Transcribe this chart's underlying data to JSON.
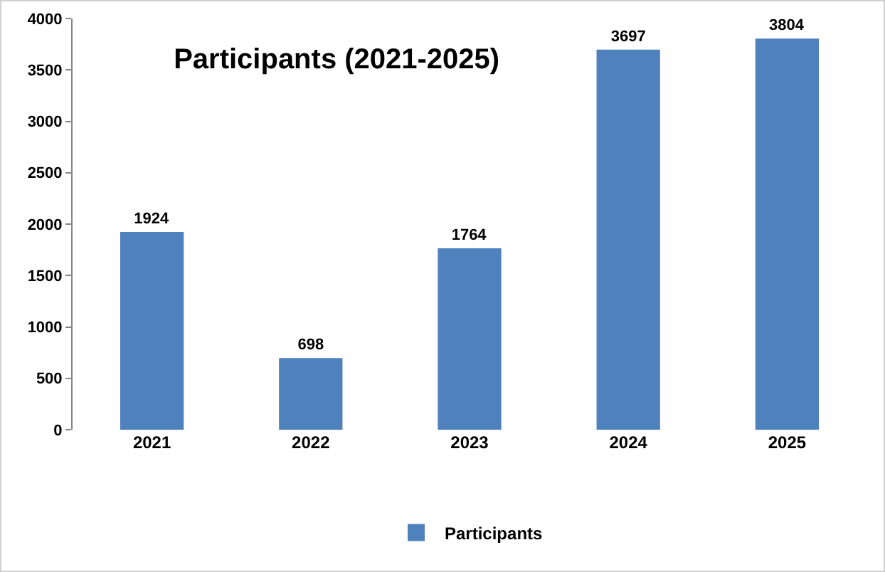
{
  "chart_data": {
    "type": "bar",
    "title": "Participants (2021-2025)",
    "categories": [
      "2021",
      "2022",
      "2023",
      "2024",
      "2025"
    ],
    "series": [
      {
        "name": "Participants",
        "color": "#4f81bd",
        "values": [
          1924,
          698,
          1764,
          3697,
          3804
        ]
      }
    ],
    "ylim": [
      0,
      4000
    ],
    "yticks": [
      0,
      500,
      1000,
      1500,
      2000,
      2500,
      3000,
      3500,
      4000
    ],
    "data_labels": true,
    "grid": false,
    "legend": "bottom"
  }
}
